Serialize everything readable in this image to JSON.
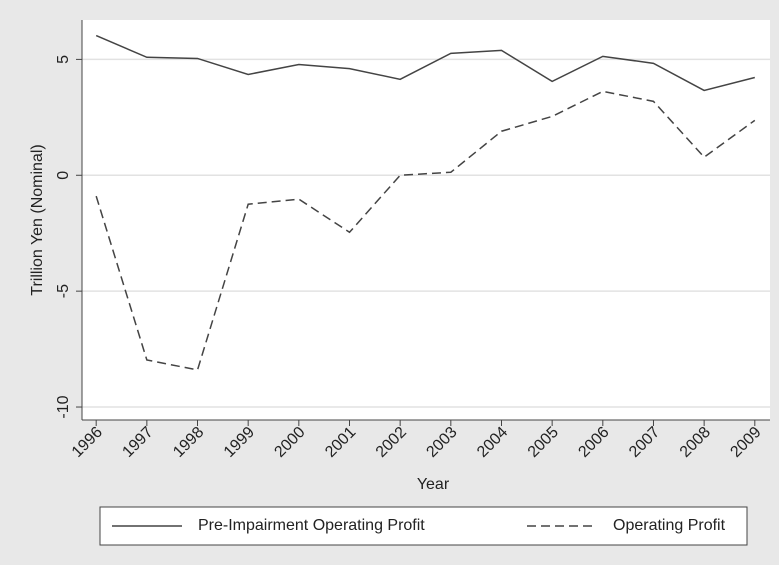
{
  "chart_data": {
    "type": "line",
    "y_label": "Trillion Yen (Nominal)",
    "x_label": "Year",
    "x": [
      1996,
      1997,
      1998,
      1999,
      2000,
      2001,
      2002,
      2003,
      2004,
      2005,
      2006,
      2007,
      2008,
      2009
    ],
    "series": [
      {
        "name": "Pre-Impairment Operating Profit",
        "color": "#444444",
        "dash": false,
        "values": [
          6.03,
          5.09,
          5.04,
          4.35,
          4.78,
          4.6,
          4.14,
          5.26,
          5.39,
          4.05,
          5.13,
          4.83,
          3.66,
          4.22
        ]
      },
      {
        "name": "Operating Profit",
        "color": "#444444",
        "dash": true,
        "values": [
          -0.9,
          -7.97,
          -8.4,
          -1.25,
          -1.03,
          -2.46,
          0.0,
          0.13,
          1.9,
          2.54,
          3.62,
          3.19,
          0.78,
          2.37
        ]
      }
    ],
    "xlim": [
      1995.72,
      2009.3
    ],
    "ylim": [
      -10.56,
      6.7
    ],
    "xticks": [
      1996,
      1997,
      1998,
      1999,
      2000,
      2001,
      2002,
      2003,
      2004,
      2005,
      2006,
      2007,
      2008,
      2009
    ],
    "yticks": [
      -10,
      -5,
      0,
      5
    ],
    "grid": true,
    "legend": "bottom"
  }
}
